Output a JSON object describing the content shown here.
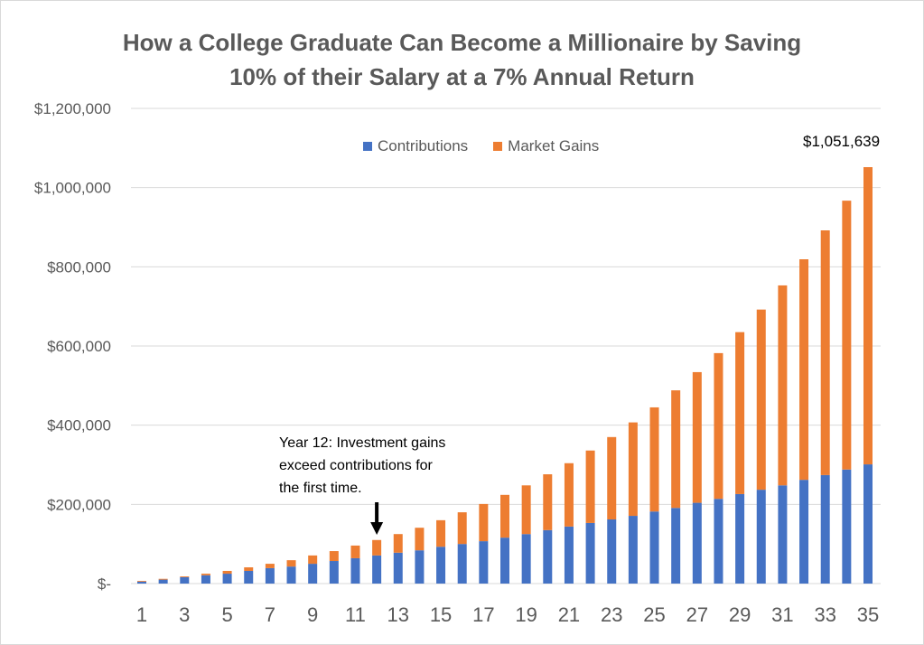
{
  "chart_data": {
    "type": "bar",
    "stacked": true,
    "title": "How a College Graduate Can Become a Millionaire by Saving 10% of their Salary at a 7% Annual Return",
    "title_lines": [
      "How a College Graduate Can Become a Millionaire by Saving",
      "10% of their Salary at a 7% Annual Return"
    ],
    "xlabel": "",
    "ylabel": "",
    "categories": [
      1,
      2,
      3,
      4,
      5,
      6,
      7,
      8,
      9,
      10,
      11,
      12,
      13,
      14,
      15,
      16,
      17,
      18,
      19,
      20,
      21,
      22,
      23,
      24,
      25,
      26,
      27,
      28,
      29,
      30,
      31,
      32,
      33,
      34,
      35
    ],
    "x_tick_labels": [
      "1",
      "3",
      "5",
      "7",
      "9",
      "11",
      "13",
      "15",
      "17",
      "19",
      "21",
      "23",
      "25",
      "27",
      "29",
      "31",
      "33",
      "35"
    ],
    "ylim": [
      0,
      1200000
    ],
    "y_tick_labels": [
      "$-",
      "$200,000",
      "$400,000",
      "$600,000",
      "$800,000",
      "$1,000,000",
      "$1,200,000"
    ],
    "grid": true,
    "legend_position": "top",
    "series": [
      {
        "name": "Contributions",
        "color": "#4472C4",
        "values": [
          5000,
          10000,
          16000,
          21000,
          25000,
          32000,
          39000,
          43000,
          50000,
          57000,
          64000,
          71000,
          78000,
          84000,
          93000,
          100000,
          107000,
          116000,
          125000,
          135000,
          144000,
          153000,
          162000,
          171000,
          182000,
          191000,
          204000,
          214000,
          226000,
          237000,
          248000,
          262000,
          274000,
          288000,
          301000
        ]
      },
      {
        "name": "Market Gains",
        "color": "#ED7D31",
        "values": [
          1800,
          2000,
          2000,
          4000,
          7000,
          9000,
          11000,
          16000,
          21000,
          25000,
          32000,
          39000,
          47000,
          57000,
          67000,
          80000,
          94000,
          108000,
          123000,
          141000,
          160000,
          183000,
          208000,
          236000,
          263000,
          297000,
          330000,
          368000,
          409000,
          455000,
          505000,
          557000,
          618000,
          679000,
          750639
        ]
      }
    ],
    "data_labels": [
      {
        "category": 35,
        "text": "$1,051,639"
      }
    ],
    "annotation": {
      "category": 12,
      "lines": [
        "Year 12: Investment gains",
        "exceed contributions for",
        "the first time."
      ]
    }
  }
}
